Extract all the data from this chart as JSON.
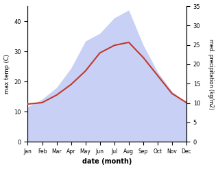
{
  "months": [
    "Jan",
    "Feb",
    "Mar",
    "Apr",
    "May",
    "Jun",
    "Jul",
    "Aug",
    "Sep",
    "Oct",
    "Nov",
    "Dec"
  ],
  "temp": [
    12.5,
    13.0,
    15.5,
    19.0,
    23.5,
    29.5,
    32.0,
    33.0,
    28.0,
    22.0,
    16.0,
    13.0
  ],
  "precip": [
    9,
    11,
    14,
    19,
    26,
    28,
    32,
    34,
    25,
    18,
    13,
    10
  ],
  "temp_color": "#c0392b",
  "precip_fill_color": "#c8d0f5",
  "temp_ylim": [
    0,
    45
  ],
  "precip_ylim": [
    0,
    35
  ],
  "temp_yticks": [
    0,
    10,
    20,
    30,
    40
  ],
  "precip_yticks": [
    0,
    5,
    10,
    15,
    20,
    25,
    30,
    35
  ],
  "xlabel": "date (month)",
  "ylabel_left": "max temp (C)",
  "ylabel_right": "med. precipitation (kg/m2)",
  "bg_color": "#ffffff"
}
